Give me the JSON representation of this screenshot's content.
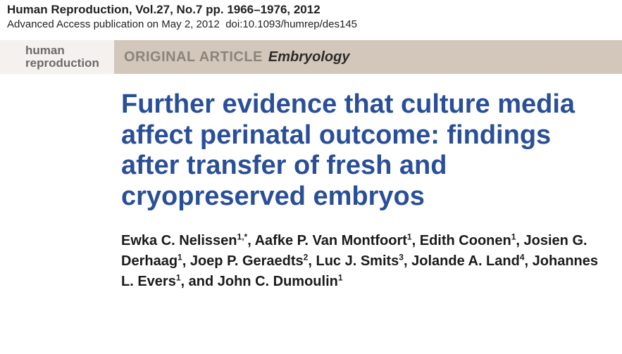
{
  "meta": {
    "journal_line": "Human Reproduction, Vol.27, No.7 pp. 1966–1976, 2012",
    "access_line": "Advanced Access publication on May 2, 2012  doi:10.1093/humrep/des145"
  },
  "brand": {
    "line1": "human",
    "line2": "reproduction"
  },
  "section": {
    "label": "ORIGINAL ARTICLE",
    "topic": "Embryology"
  },
  "title": "Further evidence that culture media affect perinatal outcome: findings after transfer of fresh and cryopreserved embryos",
  "authors": [
    {
      "name": "Ewka C. Nelissen",
      "affil": "1,*"
    },
    {
      "name": "Aafke P. Van Montfoort",
      "affil": "1"
    },
    {
      "name": "Edith Coonen",
      "affil": "1"
    },
    {
      "name": "Josien G. Derhaag",
      "affil": "1"
    },
    {
      "name": "Joep P. Geraedts",
      "affil": "2"
    },
    {
      "name": "Luc J. Smits",
      "affil": "3"
    },
    {
      "name": "Jolande A. Land",
      "affil": "4"
    },
    {
      "name": "Johannes L. Evers",
      "affil": "1"
    },
    {
      "name": "John C. Dumoulin",
      "affil": "1"
    }
  ],
  "colors": {
    "title_color": "#2a4f99",
    "band_bg": "#d3c7bb",
    "band_left_bg": "#f4f1ee",
    "brand_color": "#6b6b6b",
    "section_label_color": "#8b8478",
    "body_text": "#1a1a1a"
  }
}
